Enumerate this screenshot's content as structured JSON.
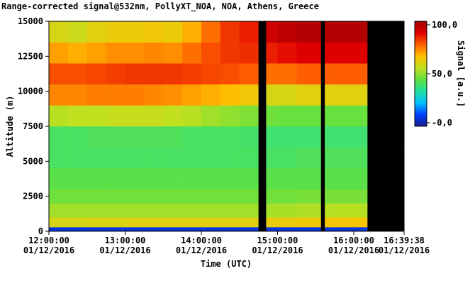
{
  "chart_data": {
    "type": "heatmap",
    "title": "Range-corrected signal@532nm, PollyXT_NOA, NOA, Athens, Greece",
    "x_label": "Time (UTC)",
    "y_label": "Altitude (m)",
    "colorbar_label": "Signal [a.u.]",
    "x_bins": [
      12,
      12.25,
      12.5,
      12.75,
      13,
      13.25,
      13.5,
      13.75,
      14,
      14.25,
      14.5,
      14.75,
      14.85,
      15,
      15.25,
      15.5,
      15.57,
      15.62,
      15.75,
      16,
      16.18,
      16.6606
    ],
    "y_bins": [
      0,
      300,
      1000,
      2000,
      3000,
      4500,
      6000,
      7500,
      9000,
      10500,
      12000,
      13500,
      15000
    ],
    "z": [
      [
        5,
        5,
        5,
        5,
        5,
        5,
        5,
        5,
        5,
        5,
        5,
        null,
        5,
        5,
        5,
        5,
        null,
        5,
        5,
        5,
        null
      ],
      [
        60,
        60,
        61,
        61,
        62,
        62,
        62,
        62,
        62,
        62,
        62,
        null,
        63,
        64,
        65,
        65,
        null,
        66,
        66,
        66,
        null
      ],
      [
        52,
        52,
        52,
        52,
        52,
        52,
        52,
        52,
        52,
        52,
        52,
        null,
        53,
        53,
        54,
        54,
        null,
        55,
        55,
        55,
        null
      ],
      [
        46,
        46,
        46,
        46,
        46,
        46,
        46,
        46,
        46,
        46,
        46,
        null,
        46,
        46,
        47,
        47,
        null,
        47,
        47,
        47,
        null
      ],
      [
        43,
        43,
        43,
        43,
        43,
        43,
        43,
        43,
        43,
        43,
        43,
        null,
        43,
        43,
        43,
        43,
        null,
        43,
        43,
        43,
        null
      ],
      [
        40,
        40,
        40,
        40,
        40,
        40,
        40,
        40,
        40,
        40,
        40,
        null,
        40,
        40,
        41,
        41,
        null,
        41,
        41,
        41,
        null
      ],
      [
        40,
        40,
        41,
        41,
        41,
        41,
        41,
        40,
        40,
        40,
        39,
        null,
        38,
        38,
        38,
        38,
        null,
        38,
        38,
        38,
        null
      ],
      [
        55,
        56,
        56,
        57,
        57,
        57,
        56,
        55,
        52,
        50,
        48,
        null,
        46,
        45,
        45,
        45,
        null,
        45,
        45,
        45,
        null
      ],
      [
        75,
        75,
        76,
        76,
        76,
        75,
        74,
        72,
        70,
        68,
        65,
        null,
        60,
        60,
        62,
        62,
        null,
        62,
        62,
        62,
        null
      ],
      [
        82,
        82,
        83,
        84,
        85,
        85,
        85,
        84,
        83,
        82,
        80,
        null,
        78,
        78,
        80,
        80,
        null,
        80,
        80,
        80,
        null
      ],
      [
        72,
        70,
        72,
        74,
        74,
        75,
        74,
        78,
        82,
        85,
        86,
        null,
        88,
        90,
        92,
        92,
        null,
        92,
        92,
        92,
        null
      ],
      [
        60,
        58,
        62,
        64,
        64,
        65,
        64,
        70,
        78,
        85,
        88,
        null,
        95,
        98,
        100,
        100,
        null,
        100,
        100,
        100,
        null
      ]
    ],
    "xlim": [
      12,
      16.6606
    ],
    "ylim": [
      0,
      15000
    ],
    "xticks": [
      {
        "value": 12,
        "label": [
          "12:00:00",
          "01/12/2016"
        ]
      },
      {
        "value": 13,
        "label": [
          "13:00:00",
          "01/12/2016"
        ]
      },
      {
        "value": 14,
        "label": [
          "14:00:00",
          "01/12/2016"
        ]
      },
      {
        "value": 15,
        "label": [
          "15:00:00",
          "01/12/2016"
        ]
      },
      {
        "value": 16,
        "label": [
          "16:00:00",
          "01/12/2016"
        ]
      },
      {
        "value": 16.6606,
        "label": [
          "16:39:38",
          "01/12/2016"
        ]
      }
    ],
    "yticks": [
      0,
      2500,
      5000,
      7500,
      10000,
      12500,
      15000
    ],
    "clim": [
      -3.6,
      103.6
    ],
    "cticks": [
      {
        "value": 0,
        "label": "-0,0"
      },
      {
        "value": 50,
        "label": "50,0"
      },
      {
        "value": 100,
        "label": "100,0"
      }
    ],
    "colorscale": [
      "#1a1a8f",
      "#0040ff",
      "#00c0ff",
      "#20e0a0",
      "#60e040",
      "#c0e020",
      "#ffc000",
      "#ff6000",
      "#e00000",
      "#a00000"
    ],
    "missing_color": "#000000"
  }
}
